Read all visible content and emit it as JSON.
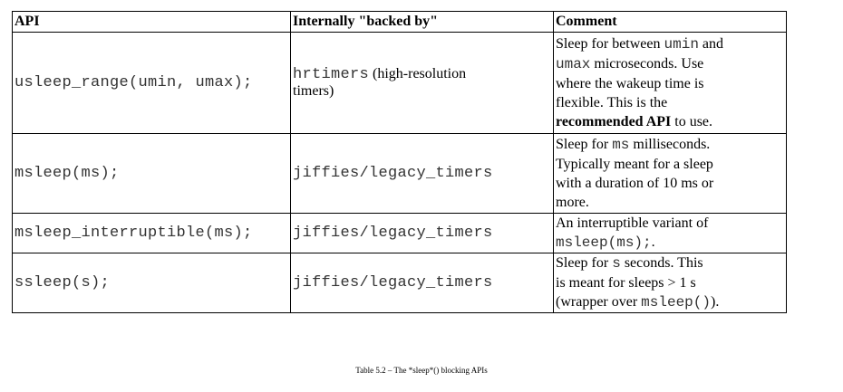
{
  "table": {
    "headers": {
      "api": "API",
      "backed_by": "Internally \"backed by\"",
      "comment": "Comment"
    },
    "rows": [
      {
        "api": "usleep_range(umin, umax);",
        "backed_mono": "hrtimers",
        "backed_serif_1": " (high-resolution",
        "backed_serif_2": "timers)",
        "comment": {
          "l1_a": "Sleep for between ",
          "l1_code": "umin",
          "l1_b": " and",
          "l2_code": "umax",
          "l2_b": " microseconds. Use",
          "l3": "where the wakeup time is",
          "l4": "flexible. This is the",
          "l5_bold": "recommended API",
          "l5_b": " to use."
        }
      },
      {
        "api": "msleep(ms);",
        "backed": "jiffies/legacy_timers",
        "comment": {
          "l1_a": "Sleep for ",
          "l1_code": "ms",
          "l1_b": " milliseconds.",
          "l2": "Typically meant for a sleep",
          "l3": "with a duration of 10 ms or",
          "l4": "more."
        }
      },
      {
        "api": "msleep_interruptible(ms);",
        "backed": "jiffies/legacy_timers",
        "comment": {
          "l1": "An interruptible variant of",
          "l2_code": "msleep(ms);",
          "l2_b": "."
        }
      },
      {
        "api": "ssleep(s);",
        "backed": "jiffies/legacy_timers",
        "comment": {
          "l1_a": "Sleep for ",
          "l1_code": "s",
          "l1_b": " seconds. This",
          "l2": "is meant for sleeps > 1 s",
          "l3_a": "(wrapper over ",
          "l3_code": "msleep()",
          "l3_b": ")."
        }
      }
    ]
  },
  "caption": "Table 5.2 – The *sleep*() blocking APIs"
}
